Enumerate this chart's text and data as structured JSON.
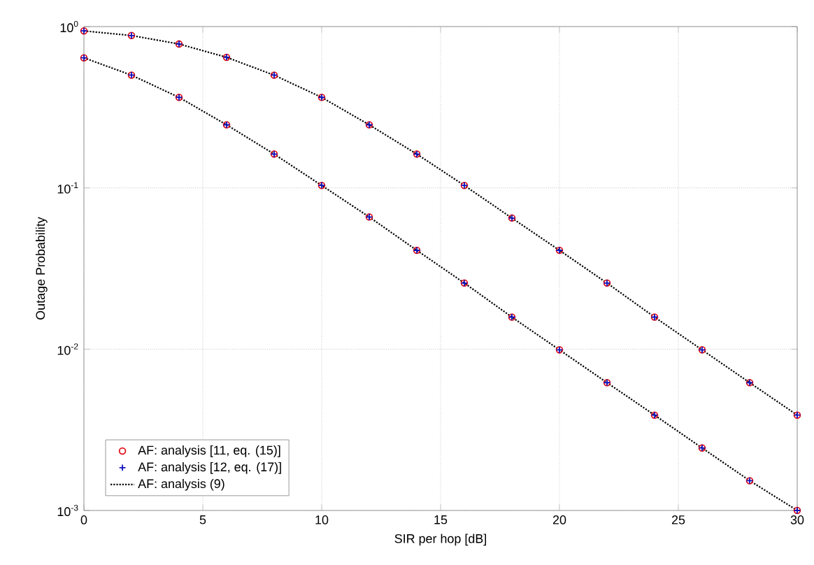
{
  "chart_data": {
    "type": "line",
    "xlabel": "SIR per hop [dB]",
    "ylabel": "Outage Probability",
    "log": "y",
    "grid": true,
    "legend": "bottom left",
    "xlim": [
      0,
      30
    ],
    "xticks": [
      0,
      5,
      10,
      15,
      20,
      25,
      30
    ],
    "ylim": [
      0.001,
      1
    ],
    "yticks": [
      {
        "value": 1,
        "label": "10$^{0}$"
      },
      {
        "value": 0.1,
        "label": "10$^{-1}$"
      },
      {
        "value": 0.01,
        "label": "10$^{-2}$"
      },
      {
        "value": 0.001,
        "label": "10$^{-3}$"
      }
    ],
    "x": [
      0,
      2,
      4,
      6,
      8,
      10,
      12,
      14,
      16,
      18,
      20,
      22,
      24,
      26,
      28,
      30
    ],
    "series": [
      {
        "name": "AF: analysis [11, eq. (15)]",
        "type": "scatter",
        "marker": "circle",
        "color": "#e0101a",
        "values": [
          0.94,
          0.88,
          0.78,
          0.645,
          0.5,
          0.364,
          0.246,
          0.162,
          0.1035,
          0.065,
          0.041,
          0.0257,
          0.0158,
          0.0099,
          0.0062,
          0.0039
        ]
      },
      {
        "name": "AF: analysis [12, eq. (17)]",
        "type": "scatter",
        "marker": "cross",
        "color": "#1010c0",
        "values": [
          0.94,
          0.88,
          0.78,
          0.645,
          0.5,
          0.364,
          0.246,
          0.162,
          0.1035,
          0.065,
          0.041,
          0.0257,
          0.0158,
          0.0099,
          0.0062,
          0.0039
        ]
      },
      {
        "name": "AF: analysis (9)",
        "line_style": "dotted",
        "color": "#000000",
        "values": [
          0.94,
          0.88,
          0.78,
          0.645,
          0.5,
          0.364,
          0.246,
          0.162,
          0.1035,
          0.065,
          0.041,
          0.0257,
          0.0158,
          0.0099,
          0.0062,
          0.0039
        ]
      },
      {
        "type": "scatter",
        "marker": "circle",
        "color": "#e0101a",
        "values": [
          0.64,
          0.5,
          0.364,
          0.246,
          0.162,
          0.1035,
          0.066,
          0.041,
          0.0257,
          0.0158,
          0.0099,
          0.0062,
          0.0039,
          0.00244,
          0.00153,
          0.001
        ]
      },
      {
        "type": "scatter",
        "marker": "cross",
        "color": "#1010c0",
        "values": [
          0.64,
          0.5,
          0.364,
          0.246,
          0.162,
          0.1035,
          0.066,
          0.041,
          0.0257,
          0.0158,
          0.0099,
          0.0062,
          0.0039,
          0.00244,
          0.00153,
          0.001
        ]
      },
      {
        "line_style": "dotted",
        "color": "#000000",
        "values": [
          0.64,
          0.5,
          0.364,
          0.246,
          0.162,
          0.1035,
          0.066,
          0.041,
          0.0257,
          0.0158,
          0.0099,
          0.0062,
          0.0039,
          0.00244,
          0.00153,
          0.001
        ]
      }
    ]
  }
}
